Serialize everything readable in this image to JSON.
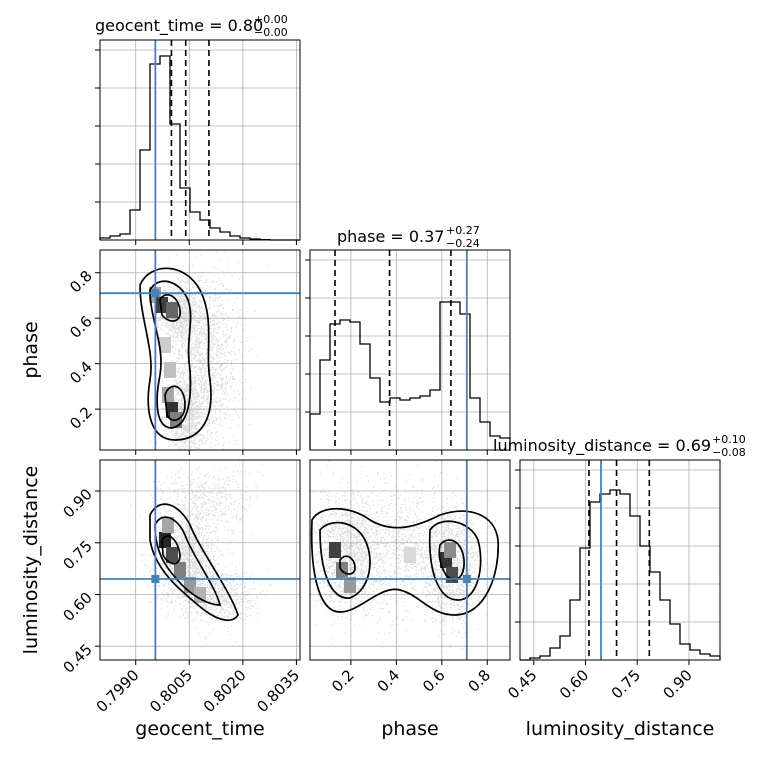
{
  "chart_data": {
    "type": "corner",
    "grid": true,
    "params": [
      {
        "name": "geocent_time",
        "range": [
          0.798,
          0.8036
        ],
        "ticks": [
          0.799,
          0.8005,
          0.802,
          0.8035
        ],
        "tick_labels": [
          "0.7990",
          "0.8005",
          "0.8020",
          "0.8035"
        ],
        "truth": 0.79955,
        "quantiles": [
          0.8,
          0.8004,
          0.80105
        ]
      },
      {
        "name": "phase",
        "range": [
          0.02,
          0.9
        ],
        "ticks": [
          0.2,
          0.4,
          0.6,
          0.8
        ],
        "tick_labels": [
          "0.2",
          "0.4",
          "0.6",
          "0.8"
        ],
        "truth": 0.71,
        "quantiles": [
          0.13,
          0.37,
          0.64
        ]
      },
      {
        "name": "luminosity_distance",
        "range": [
          0.41,
          0.99
        ],
        "ticks": [
          0.45,
          0.6,
          0.75,
          0.9
        ],
        "tick_labels": [
          "0.45",
          "0.60",
          "0.75",
          "0.90"
        ],
        "truth": 0.645,
        "quantiles": [
          0.61,
          0.69,
          0.785
        ]
      }
    ],
    "titles": {
      "p0": {
        "main": "geocent_time = 0.80",
        "sup": "+0.00",
        "sub": "−0.00"
      },
      "p1": {
        "main": "phase = 0.37",
        "sup": "+0.27",
        "sub": "−0.24"
      },
      "p2": {
        "main": "luminosity_distance = 0.69",
        "sup": "+0.10",
        "sub": "−0.08"
      }
    },
    "axis_labels": {
      "x0": "geocent_time",
      "x1": "phase",
      "x2": "luminosity_distance",
      "y1": "phase",
      "y2": "luminosity_distance"
    },
    "hist_geocent_time": [
      0.01,
      0.02,
      0.03,
      0.15,
      0.45,
      0.88,
      0.92,
      0.58,
      0.26,
      0.14,
      0.1,
      0.06,
      0.04,
      0.02,
      0.01,
      0.005,
      0.002,
      0,
      0,
      0
    ],
    "hist_phase": [
      0.18,
      0.45,
      0.63,
      0.65,
      0.64,
      0.53,
      0.36,
      0.24,
      0.26,
      0.25,
      0.26,
      0.27,
      0.3,
      0.74,
      0.74,
      0.68,
      0.26,
      0.14,
      0.07,
      0.06
    ],
    "hist_luminosity_distance": [
      0.0,
      0.01,
      0.02,
      0.06,
      0.12,
      0.3,
      0.56,
      0.79,
      0.83,
      0.85,
      0.83,
      0.72,
      0.57,
      0.44,
      0.3,
      0.18,
      0.08,
      0.05,
      0.03,
      0.02
    ],
    "colors": {
      "truth": "#4682b4",
      "hist": "#000000",
      "grid": "#b0b0b0",
      "scatter": "#9a9a9a"
    }
  }
}
